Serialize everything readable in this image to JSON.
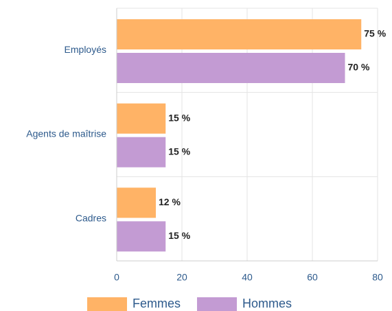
{
  "chart_data": {
    "type": "bar",
    "orientation": "horizontal",
    "categories": [
      "Employés",
      "Agents de maîtrise",
      "Cadres"
    ],
    "series": [
      {
        "name": "Femmes",
        "color": "#ffb366",
        "values": [
          75,
          15,
          12
        ],
        "value_labels": [
          "75 %",
          "15 %",
          "12 %"
        ]
      },
      {
        "name": "Hommes",
        "color": "#c39bd3",
        "values": [
          70,
          15,
          15
        ],
        "value_labels": [
          "70 %",
          "15 %",
          "15 %"
        ]
      }
    ],
    "xlim": [
      0,
      80
    ],
    "xticks": [
      0,
      20,
      40,
      60,
      80
    ],
    "grid": true,
    "legend": "bottom"
  }
}
